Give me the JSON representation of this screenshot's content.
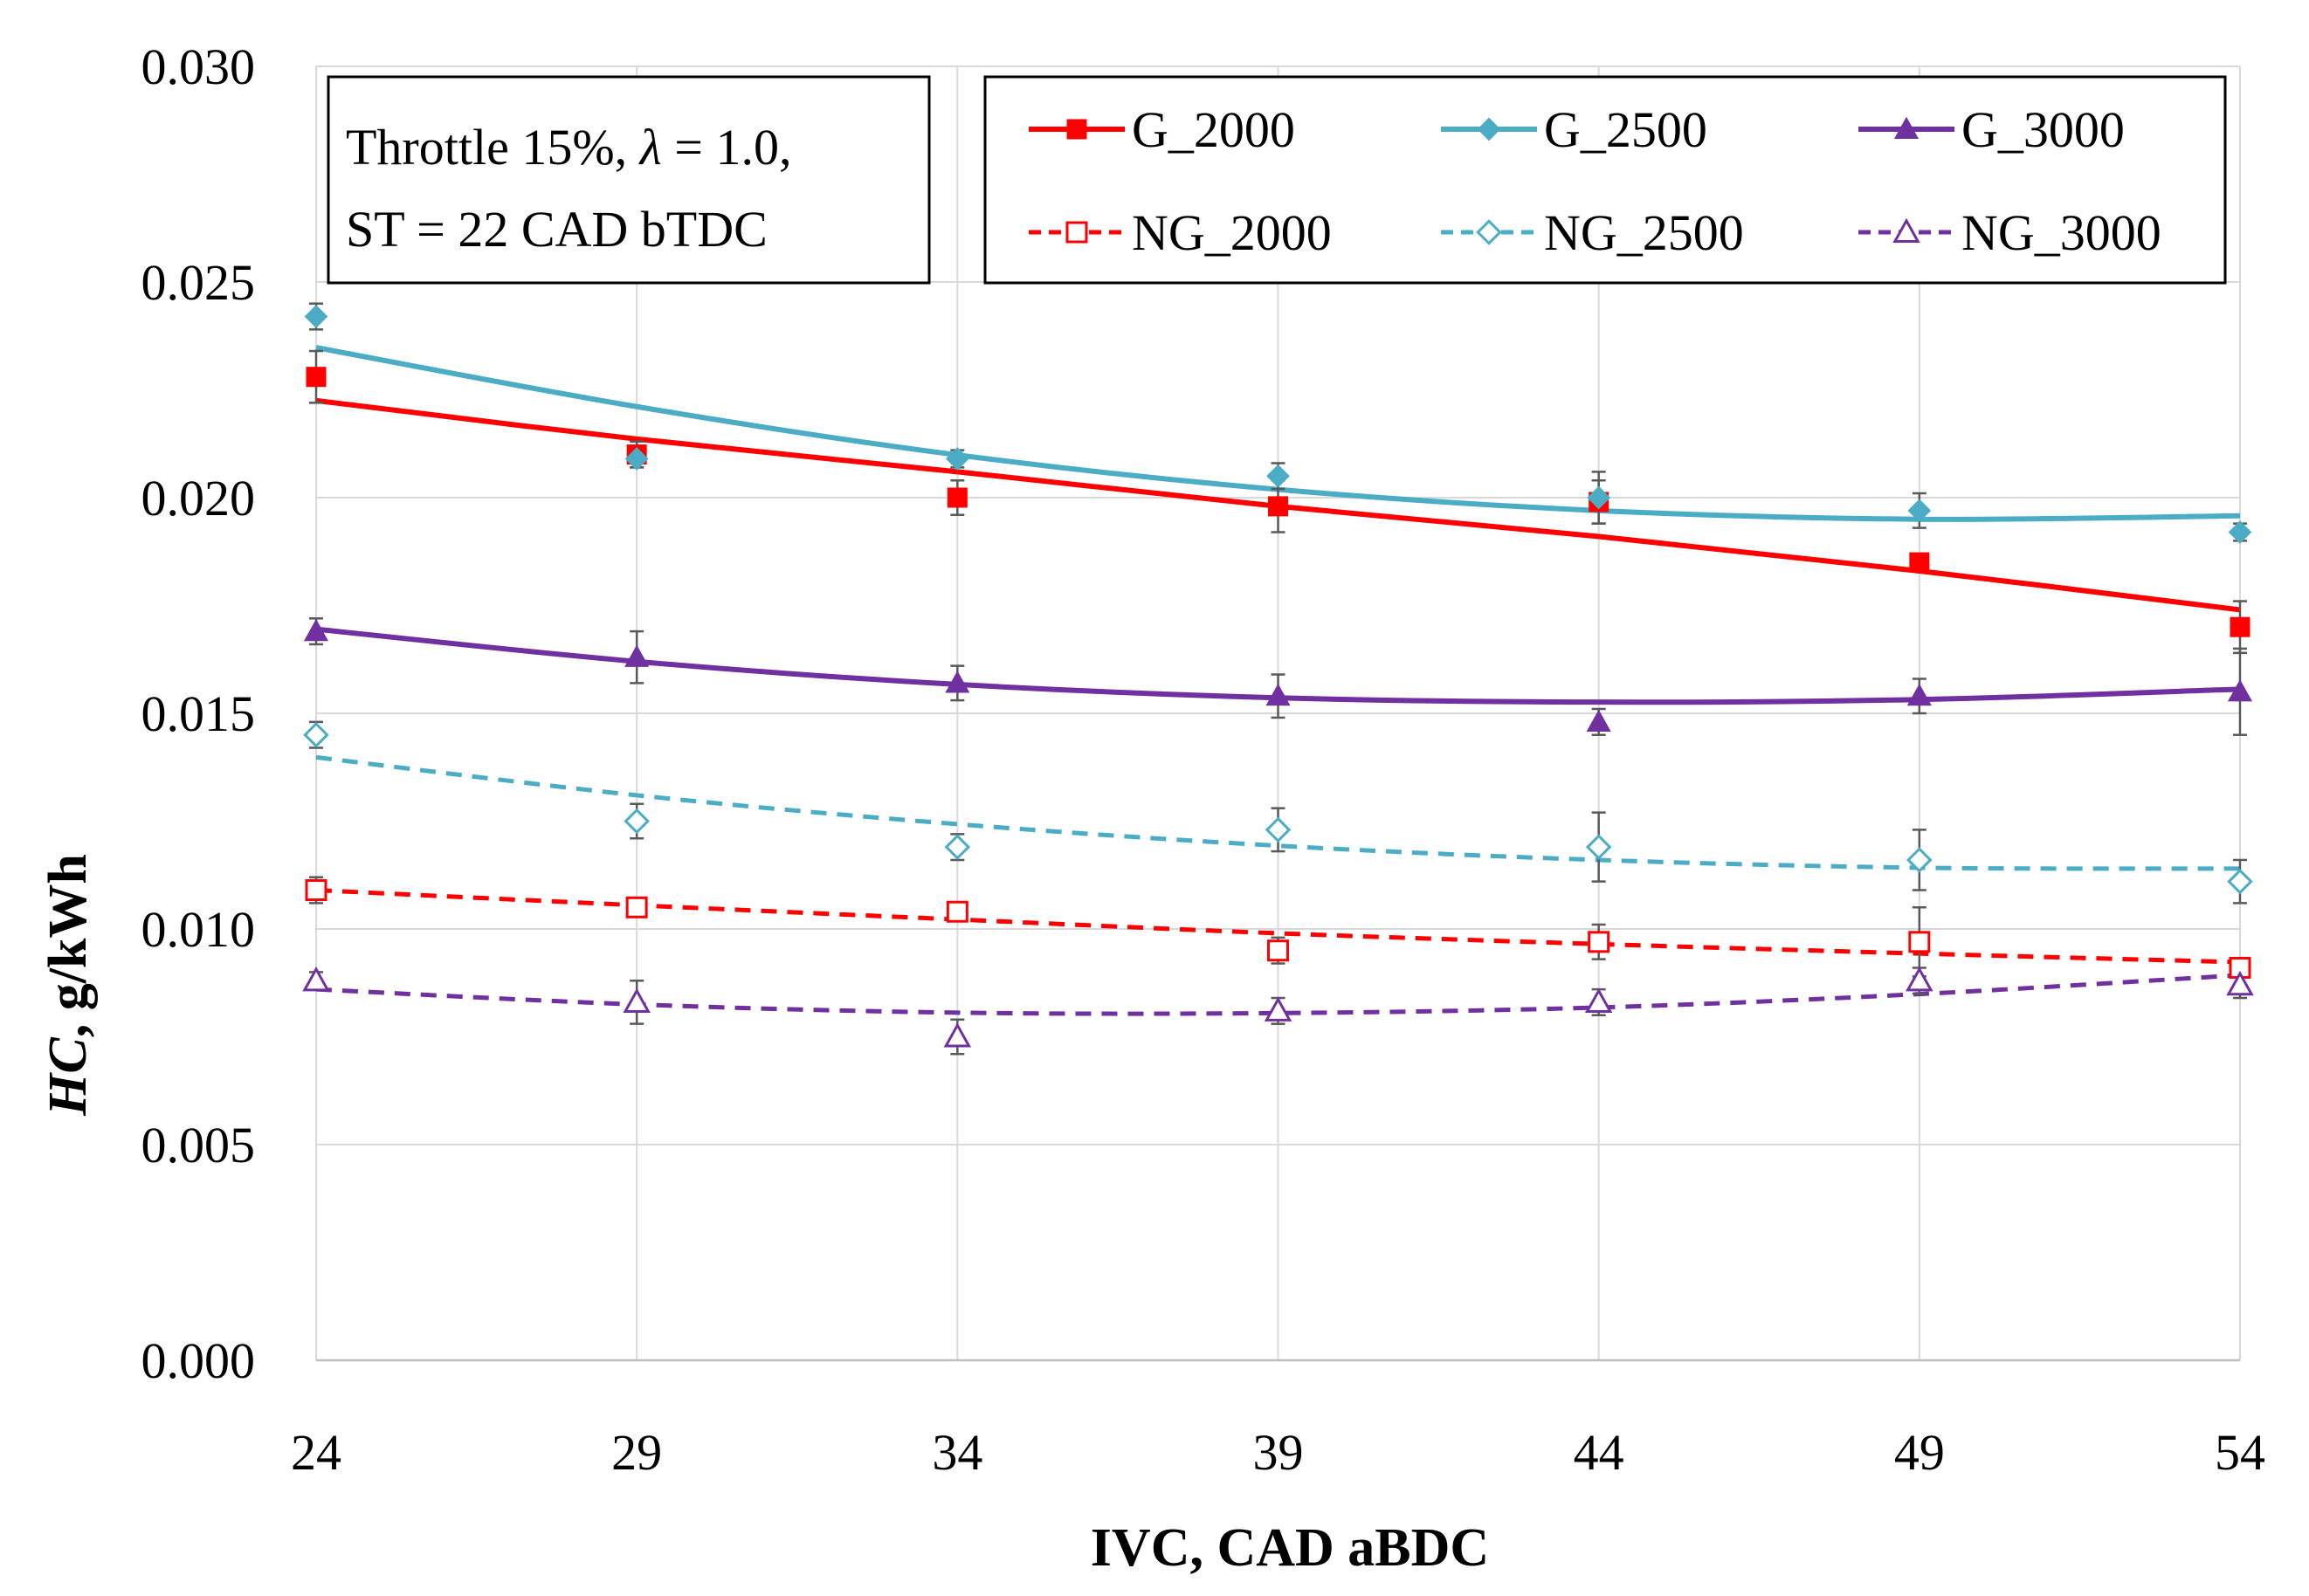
{
  "chart_data": {
    "type": "line",
    "title": "",
    "xlabel": "IVC, CAD aBDC",
    "ylabel_var": "HC",
    "ylabel_rest": ", g/kWh",
    "x": [
      24,
      29,
      34,
      39,
      44,
      49,
      54
    ],
    "xlim": [
      24,
      54
    ],
    "ylim": [
      0,
      0.03
    ],
    "x_ticks": [
      "24",
      "29",
      "34",
      "39",
      "44",
      "49",
      "54"
    ],
    "y_ticks": [
      "0.000",
      "0.005",
      "0.010",
      "0.015",
      "0.020",
      "0.025",
      "0.030"
    ],
    "y_tick_values": [
      0,
      0.005,
      0.01,
      0.015,
      0.02,
      0.025,
      0.03
    ],
    "grid": true,
    "legend_position": "top-right",
    "annotation": {
      "line1_a": "Throttle 15%, ",
      "line1_lambda": "λ",
      "line1_b": " = 1.0,",
      "line2": "ST = 22 CAD bTDC"
    },
    "series": [
      {
        "name": "G_2000",
        "color": "#ff0000",
        "marker": "square",
        "filled": true,
        "dashed": false,
        "values": [
          0.0228,
          0.021,
          0.02,
          0.0198,
          0.0199,
          0.0185,
          0.017
        ],
        "errors": [
          0.0006,
          0.0003,
          0.0004,
          0.0006,
          0.0005,
          0.0002,
          0.0006
        ],
        "trend": [
          0.02225,
          0.02136,
          0.0206,
          0.0198,
          0.0191,
          0.0183,
          0.0174
        ]
      },
      {
        "name": "G_2500",
        "color": "#4bacc6",
        "marker": "diamond",
        "filled": true,
        "dashed": false,
        "values": [
          0.0242,
          0.0209,
          0.0209,
          0.0205,
          0.02,
          0.0197,
          0.0192
        ],
        "errors": [
          0.0003,
          0.0002,
          0.0002,
          0.0003,
          0.0006,
          0.0004,
          0.0002
        ],
        "trend": [
          0.02348,
          0.02211,
          0.02099,
          0.02019,
          0.0197,
          0.0195,
          0.01958
        ]
      },
      {
        "name": "G_3000",
        "color": "#7030a0",
        "marker": "triangle",
        "filled": true,
        "dashed": false,
        "values": [
          0.0169,
          0.0163,
          0.0157,
          0.0154,
          0.0148,
          0.0154,
          0.0155
        ],
        "errors": [
          0.0003,
          0.0006,
          0.0004,
          0.0005,
          0.0003,
          0.0004,
          0.001
        ],
        "trend": [
          0.01695,
          0.0162,
          0.01567,
          0.01536,
          0.01526,
          0.01532,
          0.01556
        ]
      },
      {
        "name": "NG_2000",
        "color": "#ff0000",
        "marker": "square",
        "filled": false,
        "dashed": true,
        "values": [
          0.0109,
          0.0105,
          0.0104,
          0.0095,
          0.0097,
          0.0097,
          0.0091
        ],
        "errors": [
          0.0003,
          0.0002,
          0.0002,
          0.0003,
          0.0004,
          0.0008,
          0.0002
        ],
        "trend": [
          0.0109,
          0.01055,
          0.01022,
          0.0099,
          0.00965,
          0.00943,
          0.00923
        ]
      },
      {
        "name": "NG_2500",
        "color": "#4bacc6",
        "marker": "diamond",
        "filled": false,
        "dashed": true,
        "values": [
          0.0145,
          0.0125,
          0.0119,
          0.0123,
          0.0119,
          0.0116,
          0.0111
        ],
        "errors": [
          0.0003,
          0.0004,
          0.0003,
          0.0005,
          0.0008,
          0.0007,
          0.0005
        ],
        "trend": [
          0.01398,
          0.0131,
          0.01243,
          0.01193,
          0.0116,
          0.01142,
          0.0114
        ]
      },
      {
        "name": "NG_3000",
        "color": "#7030a0",
        "marker": "triangle",
        "filled": false,
        "dashed": true,
        "values": [
          0.0088,
          0.0083,
          0.0075,
          0.0081,
          0.0083,
          0.0088,
          0.0087
        ],
        "errors": [
          0.0002,
          0.0005,
          0.0004,
          0.0003,
          0.0003,
          0.0003,
          0.0003
        ],
        "trend": [
          0.0086,
          0.00825,
          0.00806,
          0.00805,
          0.00818,
          0.00849,
          0.00893
        ]
      }
    ]
  }
}
